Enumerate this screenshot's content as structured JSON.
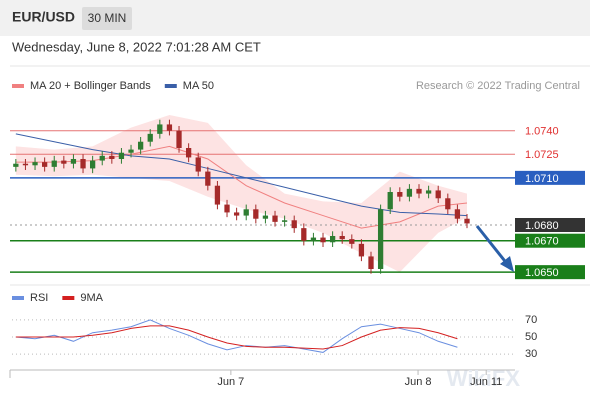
{
  "chart_data": [
    {
      "type": "candlestick",
      "title": "EUR/USD",
      "timeframe": "30 MIN",
      "subtitle": "Wednesday, June 8, 2022 7:01:28 AM CET",
      "source": "Research © 2022 Trading Central",
      "watermark": "WikiFX",
      "open": [
        1.0717,
        1.0719,
        1.0718,
        1.072,
        1.0717,
        1.0721,
        1.0719,
        1.0722,
        1.0716,
        1.0721,
        1.0724,
        1.0722,
        1.0726,
        1.0728,
        1.0733,
        1.0738,
        1.0744,
        1.074,
        1.0729,
        1.0723,
        1.0714,
        1.0705,
        1.0693,
        1.0688,
        1.0686,
        1.069,
        1.0684,
        1.0686,
        1.0682,
        1.0683,
        1.0678,
        1.067,
        1.0672,
        1.0669,
        1.0673,
        1.0671,
        1.0668,
        1.066,
        1.0652,
        1.069,
        1.0701,
        1.0698,
        1.0703,
        1.07,
        1.0702,
        1.0697,
        1.069,
        1.0684
      ],
      "high": [
        1.0722,
        1.0722,
        1.0723,
        1.0723,
        1.0724,
        1.0724,
        1.0725,
        1.0725,
        1.0724,
        1.0727,
        1.0727,
        1.0729,
        1.0731,
        1.0736,
        1.0741,
        1.0747,
        1.0747,
        1.0743,
        1.0732,
        1.0726,
        1.0717,
        1.0708,
        1.0696,
        1.0691,
        1.0693,
        1.0693,
        1.0689,
        1.0689,
        1.0686,
        1.0686,
        1.0681,
        1.0675,
        1.0675,
        1.0676,
        1.0676,
        1.0674,
        1.0671,
        1.0663,
        1.0693,
        1.0704,
        1.0704,
        1.0706,
        1.0706,
        1.0705,
        1.0705,
        1.07,
        1.0693,
        1.0687
      ],
      "low": [
        1.0714,
        1.0715,
        1.0715,
        1.0714,
        1.0714,
        1.0716,
        1.0716,
        1.0713,
        1.0713,
        1.0718,
        1.0719,
        1.0719,
        1.0723,
        1.0725,
        1.073,
        1.0735,
        1.0737,
        1.0726,
        1.072,
        1.0711,
        1.0702,
        1.069,
        1.0685,
        1.0683,
        1.0683,
        1.0681,
        1.0681,
        1.0679,
        1.0679,
        1.0675,
        1.0667,
        1.0667,
        1.0666,
        1.0666,
        1.0668,
        1.0665,
        1.0657,
        1.0649,
        1.0649,
        1.0687,
        1.0695,
        1.0695,
        1.0697,
        1.0697,
        1.0694,
        1.0687,
        1.0681,
        1.0678
      ],
      "close": [
        1.0719,
        1.0718,
        1.072,
        1.0717,
        1.0721,
        1.0719,
        1.0722,
        1.0716,
        1.0721,
        1.0724,
        1.0722,
        1.0726,
        1.0728,
        1.0733,
        1.0738,
        1.0744,
        1.074,
        1.0729,
        1.0723,
        1.0714,
        1.0705,
        1.0693,
        1.0688,
        1.0686,
        1.069,
        1.0684,
        1.0686,
        1.0682,
        1.0683,
        1.0678,
        1.067,
        1.0672,
        1.0669,
        1.0673,
        1.0671,
        1.0668,
        1.066,
        1.0652,
        1.069,
        1.0701,
        1.0698,
        1.0703,
        1.07,
        1.0702,
        1.0697,
        1.069,
        1.0684,
        1.0681
      ],
      "up_color": "#2e7d32",
      "down_color": "#a52a2a",
      "xlim": [
        -0.4,
        52
      ],
      "ylim": [
        1.0645,
        1.075
      ],
      "series": [
        {
          "name": "MA 20 + Bollinger Bands",
          "color": "#f08080",
          "band_color": "#fde3e3",
          "x": [
            0,
            4,
            8,
            12,
            16,
            20,
            24,
            28,
            32,
            36,
            40,
            44,
            47
          ],
          "values": [
            1.072,
            1.072,
            1.0721,
            1.0725,
            1.073,
            1.0722,
            1.0705,
            1.0694,
            1.0686,
            1.0678,
            1.0682,
            1.0692,
            1.0694
          ],
          "upper": [
            1.073,
            1.0728,
            1.073,
            1.0742,
            1.075,
            1.0745,
            1.0718,
            1.07,
            1.0695,
            1.0694,
            1.0714,
            1.0705,
            1.07
          ],
          "lower": [
            1.0712,
            1.0711,
            1.0712,
            1.071,
            1.0708,
            1.0698,
            1.069,
            1.0684,
            1.0675,
            1.0662,
            1.065,
            1.0675,
            1.0685
          ]
        },
        {
          "name": "MA 50",
          "color": "#3a5fa8",
          "x": [
            0,
            4,
            8,
            12,
            16,
            20,
            24,
            28,
            32,
            36,
            40,
            44,
            47
          ],
          "values": [
            1.0738,
            1.0733,
            1.0728,
            1.0724,
            1.0722,
            1.0716,
            1.071,
            1.0704,
            1.0698,
            1.0692,
            1.0688,
            1.0687,
            1.0686
          ]
        }
      ],
      "levels": [
        {
          "value": 1.074,
          "label": "1.0740",
          "color": "#e57373",
          "filled": false,
          "dashed": false
        },
        {
          "value": 1.0725,
          "label": "1.0725",
          "color": "#e57373",
          "filled": false,
          "dashed": false
        },
        {
          "value": 1.071,
          "label": "1.0710",
          "color": "#2a5fc0",
          "filled": true,
          "dashed": false
        },
        {
          "value": 1.068,
          "label": "1.0680",
          "color": "#333333",
          "filled": true,
          "dashed": true
        },
        {
          "value": 1.067,
          "label": "1.0670",
          "color": "#1a7f1a",
          "filled": true,
          "dashed": false
        },
        {
          "value": 1.065,
          "label": "1.0650",
          "color": "#1a7f1a",
          "filled": true,
          "dashed": false
        }
      ]
    },
    {
      "type": "line",
      "x": [
        0,
        2,
        4,
        6,
        8,
        10,
        12,
        14,
        16,
        18,
        20,
        22,
        24,
        26,
        28,
        30,
        32,
        34,
        36,
        38,
        40,
        42,
        44,
        46
      ],
      "series": [
        {
          "name": "RSI",
          "color": "#6a8fe0",
          "values": [
            50,
            48,
            52,
            45,
            55,
            58,
            62,
            70,
            60,
            52,
            42,
            35,
            40,
            38,
            40,
            36,
            32,
            48,
            62,
            65,
            60,
            55,
            45,
            38
          ]
        },
        {
          "name": "9MA",
          "color": "#d42020",
          "values": [
            50,
            50,
            50,
            50,
            52,
            55,
            60,
            63,
            63,
            58,
            50,
            43,
            39,
            38,
            38,
            37,
            36,
            40,
            50,
            58,
            61,
            60,
            55,
            48
          ]
        }
      ],
      "xlim": [
        -0.4,
        52
      ],
      "ylim": [
        15,
        85
      ],
      "yticks": [
        70,
        50,
        30
      ],
      "xticks": [
        {
          "value": 22.4,
          "label": "Jun 7"
        },
        {
          "value": 41.9,
          "label": "Jun 8"
        },
        {
          "value": 49,
          "label": "Jun 11"
        }
      ]
    }
  ]
}
